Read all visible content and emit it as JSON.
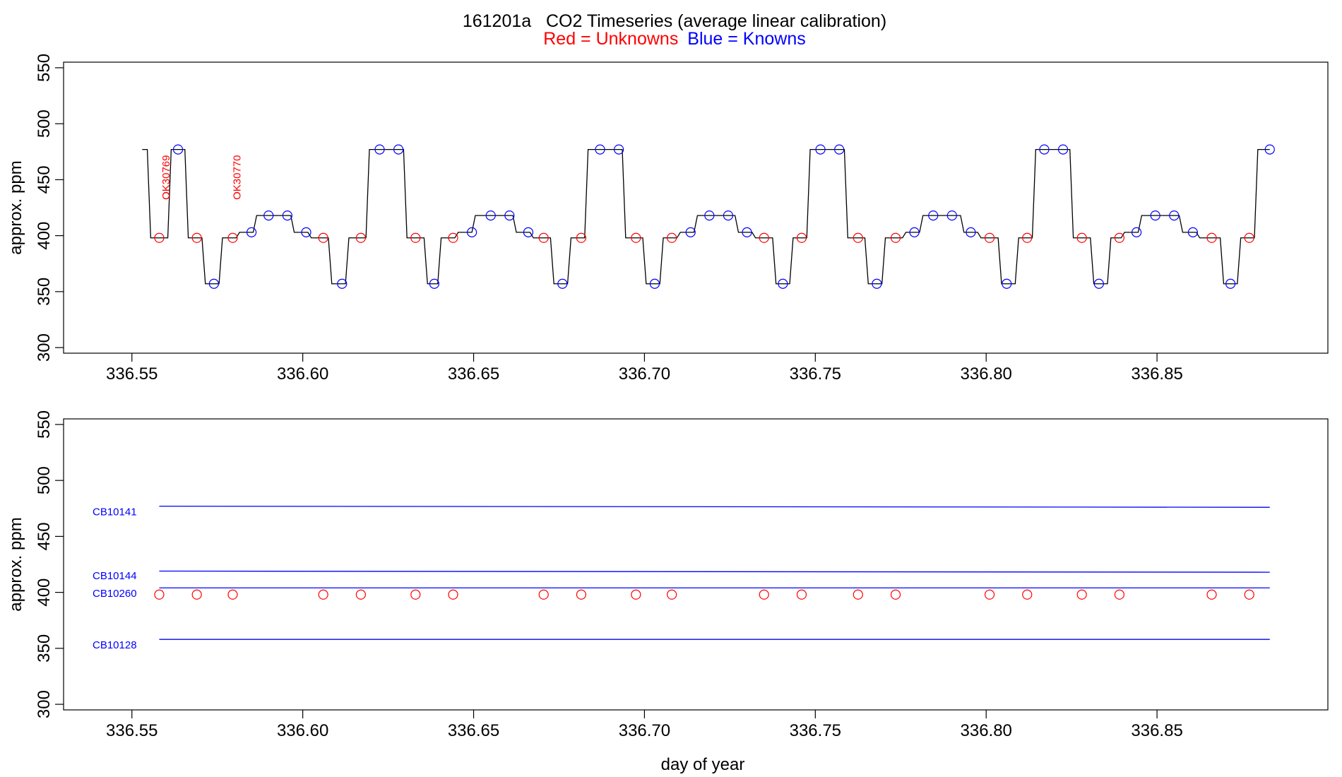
{
  "chart_title": "161201a   CO2 Timeseries (average linear calibration)",
  "legend": {
    "red_text": "Red = Unknowns",
    "blue_text": "Blue = Knowns",
    "red_color": "#ff0000",
    "blue_color": "#0000ff"
  },
  "chart_data": [
    {
      "type": "line",
      "ylabel": "approx. ppm",
      "xlabel": "",
      "xlim": [
        336.53,
        336.9
      ],
      "ylim": [
        295,
        555
      ],
      "x_ticks": [
        "336.55",
        "336.60",
        "336.65",
        "336.70",
        "336.75",
        "336.80",
        "336.85"
      ],
      "y_ticks": [
        "300",
        "350",
        "400",
        "450",
        "500",
        "550"
      ],
      "grid": false,
      "trace_color": "#000000",
      "trace_start": [
        336.553,
        477
      ],
      "cycle_levels": [
        [
          336.5555,
          398
        ],
        [
          336.5615,
          477
        ],
        [
          336.5665,
          398
        ],
        [
          336.5715,
          357
        ],
        [
          336.5765,
          398
        ],
        [
          336.5815,
          403
        ],
        [
          336.5865,
          418
        ],
        [
          336.5975,
          403
        ],
        [
          336.6025,
          398
        ],
        [
          336.6085,
          357
        ],
        [
          336.6135,
          398
        ],
        [
          336.6195,
          477
        ],
        [
          336.6305,
          398
        ],
        [
          336.6355,
          398
        ],
        [
          336.6365,
          357
        ],
        [
          336.6405,
          398
        ],
        [
          336.6455,
          403
        ],
        [
          336.6505,
          418
        ],
        [
          336.6625,
          403
        ],
        [
          336.6675,
          398
        ],
        [
          336.6735,
          357
        ],
        [
          336.6785,
          398
        ],
        [
          336.6835,
          477
        ],
        [
          336.6945,
          398
        ],
        [
          336.7005,
          357
        ],
        [
          336.7055,
          398
        ],
        [
          336.7105,
          403
        ],
        [
          336.7155,
          418
        ],
        [
          336.7275,
          403
        ],
        [
          336.7325,
          398
        ],
        [
          336.7385,
          357
        ],
        [
          336.7435,
          398
        ],
        [
          336.7485,
          477
        ],
        [
          336.7595,
          398
        ],
        [
          336.7655,
          357
        ],
        [
          336.7705,
          398
        ],
        [
          336.7765,
          403
        ],
        [
          336.7815,
          418
        ],
        [
          336.7935,
          403
        ],
        [
          336.7985,
          398
        ],
        [
          336.8045,
          357
        ],
        [
          336.8095,
          398
        ],
        [
          336.8145,
          477
        ],
        [
          336.8255,
          398
        ],
        [
          336.8315,
          357
        ],
        [
          336.8365,
          398
        ],
        [
          336.8405,
          403
        ],
        [
          336.8455,
          418
        ],
        [
          336.8575,
          403
        ],
        [
          336.8625,
          398
        ],
        [
          336.8695,
          357
        ],
        [
          336.8745,
          398
        ],
        [
          336.8795,
          477
        ]
      ],
      "trace_end": [
        336.883,
        477
      ],
      "series": [
        {
          "color": "#ff0000",
          "marker": "circle",
          "x": [
            336.558,
            336.569,
            336.5795,
            336.606,
            336.617,
            336.633,
            336.644,
            336.6705,
            336.6815,
            336.6975,
            336.708,
            336.735,
            336.746,
            336.7625,
            336.7735,
            336.801,
            336.812,
            336.828,
            336.839,
            336.866,
            336.877
          ],
          "y": [
            398,
            398,
            398,
            398,
            398,
            398,
            398,
            398,
            398,
            398,
            398,
            398,
            398,
            398,
            398,
            398,
            398,
            398,
            398,
            398,
            398
          ]
        },
        {
          "color": "#0000ff",
          "marker": "circle",
          "x": [
            336.5635,
            336.574,
            336.585,
            336.59,
            336.5955,
            336.601,
            336.6115,
            336.6225,
            336.628,
            336.6385,
            336.6495,
            336.655,
            336.6605,
            336.666,
            336.676,
            336.687,
            336.6925,
            336.703,
            336.7135,
            336.719,
            336.7245,
            336.73,
            336.7405,
            336.7515,
            336.757,
            336.768,
            336.779,
            336.7845,
            336.79,
            336.7955,
            336.806,
            336.817,
            336.8225,
            336.833,
            336.844,
            336.8495,
            336.855,
            336.8605,
            336.8715,
            336.883
          ],
          "y": [
            477,
            357,
            403,
            418,
            418,
            403,
            357,
            477,
            477,
            357,
            403,
            418,
            418,
            403,
            357,
            477,
            477,
            357,
            403,
            418,
            418,
            403,
            357,
            477,
            477,
            357,
            403,
            418,
            418,
            403,
            357,
            477,
            477,
            357,
            403,
            418,
            418,
            403,
            357,
            477
          ]
        }
      ],
      "annotations": [
        {
          "text": "OK30769",
          "x": 336.5598,
          "y": 452,
          "color": "#ff0000"
        },
        {
          "text": "OK30770",
          "x": 336.5805,
          "y": 452,
          "color": "#ff0000"
        }
      ]
    },
    {
      "type": "line",
      "ylabel": "approx. ppm",
      "xlabel": "day of year",
      "xlim": [
        336.53,
        336.9
      ],
      "ylim": [
        295,
        555
      ],
      "x_ticks": [
        "336.55",
        "336.60",
        "336.65",
        "336.70",
        "336.75",
        "336.80",
        "336.85"
      ],
      "y_ticks": [
        "300",
        "350",
        "400",
        "450",
        "500",
        "550"
      ],
      "grid": false,
      "series": [
        {
          "name": "CB10141",
          "color": "#0000ff",
          "x": [
            336.558,
            336.883
          ],
          "y": [
            477,
            476
          ]
        },
        {
          "name": "CB10144",
          "color": "#0000ff",
          "x": [
            336.558,
            336.883
          ],
          "y": [
            419,
            418
          ]
        },
        {
          "name": "CB10260",
          "color": "#0000ff",
          "x": [
            336.558,
            336.883
          ],
          "y": [
            404,
            404
          ]
        },
        {
          "name": "CB10128",
          "color": "#0000ff",
          "x": [
            336.558,
            336.883
          ],
          "y": [
            358,
            358
          ]
        },
        {
          "color": "#ff0000",
          "marker": "circle",
          "x": [
            336.558,
            336.569,
            336.5795,
            336.606,
            336.617,
            336.633,
            336.644,
            336.6705,
            336.6815,
            336.6975,
            336.708,
            336.735,
            336.746,
            336.7625,
            336.7735,
            336.801,
            336.812,
            336.828,
            336.839,
            336.866,
            336.877
          ],
          "y": [
            398,
            398,
            398,
            398,
            398,
            398,
            398,
            398,
            398,
            398,
            398,
            398,
            398,
            398,
            398,
            398,
            398,
            398,
            398,
            398,
            398
          ]
        }
      ],
      "series_labels": [
        {
          "text": "CB10141",
          "y": 472
        },
        {
          "text": "CB10144",
          "y": 415
        },
        {
          "text": "CB10260",
          "y": 399
        },
        {
          "text": "CB10128",
          "y": 353
        }
      ]
    }
  ]
}
